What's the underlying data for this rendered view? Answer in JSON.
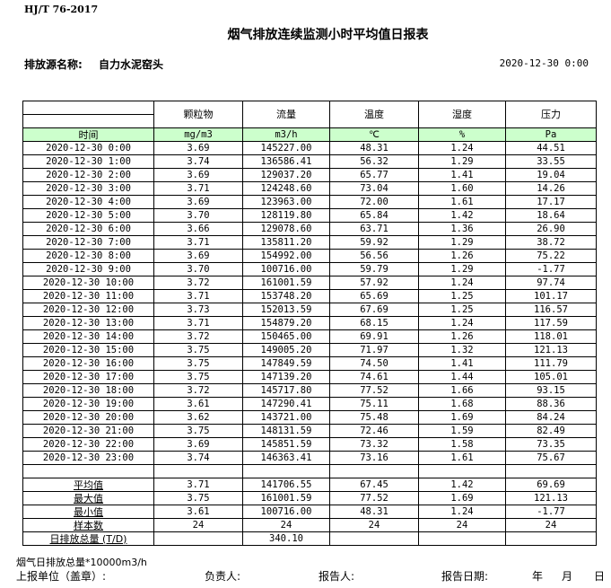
{
  "standard": "HJ/T  76-2017",
  "title": "烟气排放连续监测小时平均值日报表",
  "source_label": "排放源名称:",
  "source_value": "自力水泥窑头",
  "report_datetime": "2020-12-30 0:00",
  "table": {
    "headers": [
      "",
      "颗粒物",
      "流量",
      "温度",
      "湿度",
      "压力"
    ],
    "units": [
      "时间",
      "mg/m3",
      "m3/h",
      "℃",
      "%",
      "Pa"
    ],
    "rows": [
      [
        "2020-12-30 0:00",
        "3.69",
        "145227.00",
        "48.31",
        "1.24",
        "44.51"
      ],
      [
        "2020-12-30 1:00",
        "3.74",
        "136586.41",
        "56.32",
        "1.29",
        "33.55"
      ],
      [
        "2020-12-30 2:00",
        "3.69",
        "129037.20",
        "65.77",
        "1.41",
        "19.04"
      ],
      [
        "2020-12-30 3:00",
        "3.71",
        "124248.60",
        "73.04",
        "1.60",
        "14.26"
      ],
      [
        "2020-12-30 4:00",
        "3.69",
        "123963.00",
        "72.00",
        "1.61",
        "17.17"
      ],
      [
        "2020-12-30 5:00",
        "3.70",
        "128119.80",
        "65.84",
        "1.42",
        "18.64"
      ],
      [
        "2020-12-30 6:00",
        "3.66",
        "129078.60",
        "63.71",
        "1.36",
        "26.90"
      ],
      [
        "2020-12-30 7:00",
        "3.71",
        "135811.20",
        "59.92",
        "1.29",
        "38.72"
      ],
      [
        "2020-12-30 8:00",
        "3.69",
        "154992.00",
        "56.56",
        "1.26",
        "75.22"
      ],
      [
        "2020-12-30 9:00",
        "3.70",
        "100716.00",
        "59.79",
        "1.29",
        "-1.77"
      ],
      [
        "2020-12-30 10:00",
        "3.72",
        "161001.59",
        "57.92",
        "1.24",
        "97.74"
      ],
      [
        "2020-12-30 11:00",
        "3.71",
        "153748.20",
        "65.69",
        "1.25",
        "101.17"
      ],
      [
        "2020-12-30 12:00",
        "3.73",
        "152013.59",
        "67.69",
        "1.25",
        "116.57"
      ],
      [
        "2020-12-30 13:00",
        "3.71",
        "154879.20",
        "68.15",
        "1.24",
        "117.59"
      ],
      [
        "2020-12-30 14:00",
        "3.72",
        "150465.00",
        "69.91",
        "1.26",
        "118.01"
      ],
      [
        "2020-12-30 15:00",
        "3.75",
        "149005.20",
        "71.97",
        "1.32",
        "121.13"
      ],
      [
        "2020-12-30 16:00",
        "3.75",
        "147849.59",
        "74.50",
        "1.41",
        "111.79"
      ],
      [
        "2020-12-30 17:00",
        "3.75",
        "147139.20",
        "74.61",
        "1.44",
        "105.01"
      ],
      [
        "2020-12-30 18:00",
        "3.72",
        "145717.80",
        "77.52",
        "1.66",
        "93.15"
      ],
      [
        "2020-12-30 19:00",
        "3.61",
        "147290.41",
        "75.11",
        "1.68",
        "88.36"
      ],
      [
        "2020-12-30 20:00",
        "3.62",
        "143721.00",
        "75.48",
        "1.69",
        "84.24"
      ],
      [
        "2020-12-30 21:00",
        "3.75",
        "148131.59",
        "72.46",
        "1.59",
        "82.49"
      ],
      [
        "2020-12-30 22:00",
        "3.69",
        "145851.59",
        "73.32",
        "1.58",
        "73.35"
      ],
      [
        "2020-12-30 23:00",
        "3.74",
        "146363.41",
        "73.16",
        "1.61",
        "75.67"
      ]
    ],
    "stats": [
      [
        "平均值",
        "3.71",
        "141706.55",
        "67.45",
        "1.42",
        "69.69"
      ],
      [
        "最大值",
        "3.75",
        "161001.59",
        "77.52",
        "1.69",
        "121.13"
      ],
      [
        "最小值",
        "3.61",
        "100716.00",
        "48.31",
        "1.24",
        "-1.77"
      ],
      [
        "样本数",
        "24",
        "24",
        "24",
        "24",
        "24"
      ],
      [
        "日排放总量 (T/D)",
        "",
        "340.10",
        "",
        "",
        ""
      ]
    ]
  },
  "footer": {
    "note": "烟气日排放总量*10000m3/h",
    "unit_label": "上报单位（盖章）:",
    "responsible_label": "负责人:",
    "reporter_label": "报告人:",
    "date_label": "报告日期:",
    "year": "年",
    "month": "月",
    "day": "日"
  }
}
